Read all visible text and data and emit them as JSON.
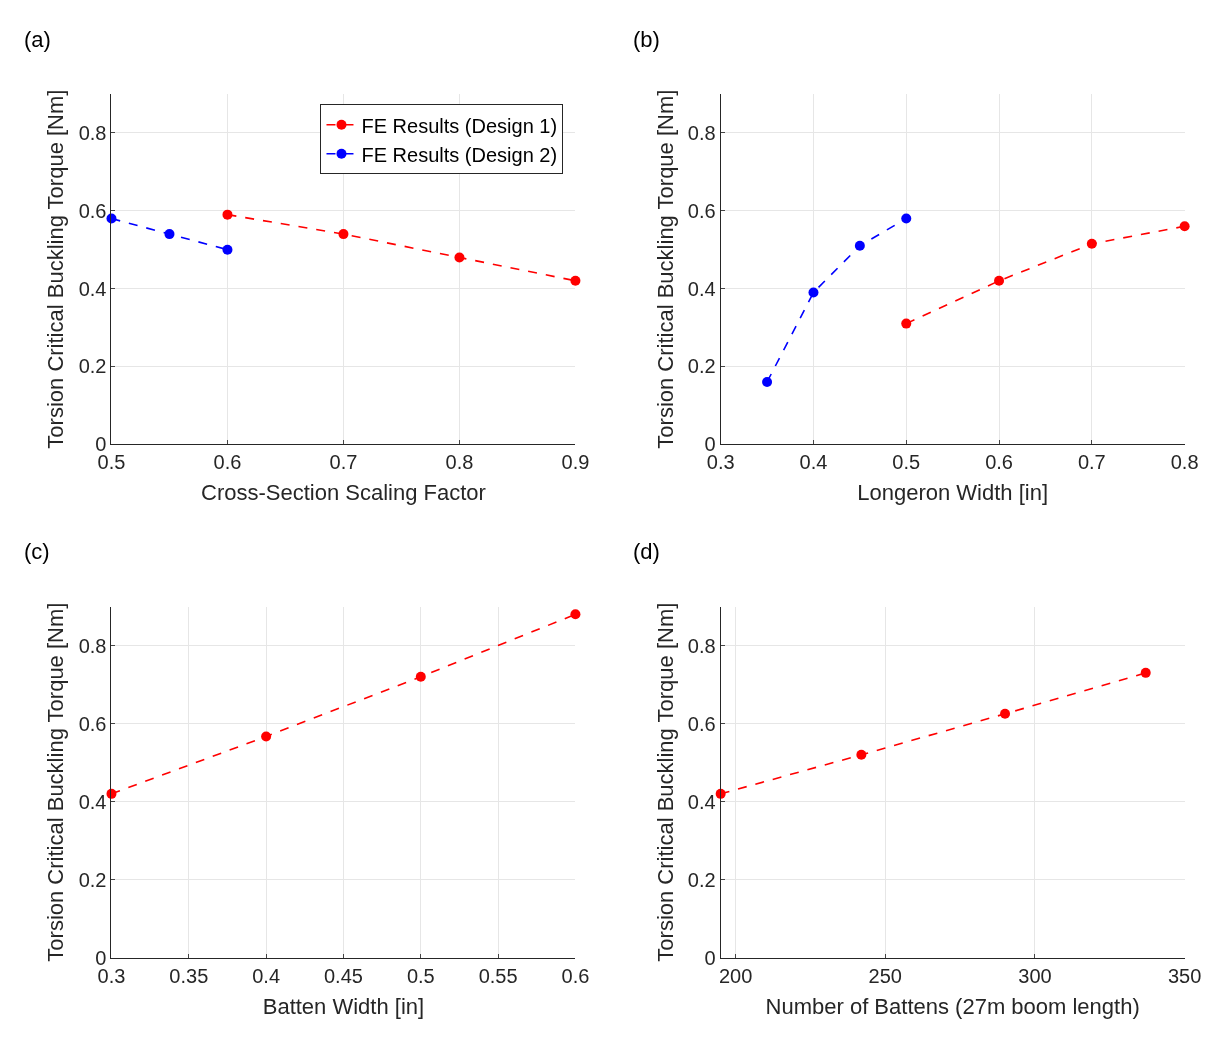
{
  "chart_data": [
    {
      "type": "line",
      "title": "(a)",
      "xlabel": "Cross-Section Scaling Factor",
      "ylabel": "Torsion Critical Buckling Torque [Nm]",
      "xlim": [
        0.5,
        0.9
      ],
      "xticks": [
        0.5,
        0.6,
        0.7,
        0.8,
        0.9
      ],
      "ylim": [
        0,
        0.9
      ],
      "yticks": [
        0,
        0.2,
        0.4,
        0.6,
        0.8
      ],
      "grid": true,
      "legend": "top right",
      "marker": "circle",
      "line_style": "dashed",
      "series": [
        {
          "name": "FE Results (Design 1)",
          "color": "#ff0000",
          "x": [
            0.6,
            0.7,
            0.8,
            0.9
          ],
          "values": [
            0.59,
            0.54,
            0.48,
            0.42
          ]
        },
        {
          "name": "FE Results (Design 2)",
          "color": "#0000ff",
          "x": [
            0.5,
            0.55,
            0.6
          ],
          "values": [
            0.58,
            0.54,
            0.5
          ]
        }
      ]
    },
    {
      "type": "line",
      "title": "(b)",
      "xlabel": "Longeron Width [in]",
      "ylabel": "Torsion Critical Buckling Torque [Nm]",
      "xlim": [
        0.3,
        0.8
      ],
      "xticks": [
        0.3,
        0.4,
        0.5,
        0.6,
        0.7,
        0.8
      ],
      "ylim": [
        0,
        0.9
      ],
      "yticks": [
        0,
        0.2,
        0.4,
        0.6,
        0.8
      ],
      "grid": true,
      "marker": "circle",
      "line_style": "dashed",
      "series": [
        {
          "color": "#0000ff",
          "x": [
            0.35,
            0.4,
            0.45,
            0.5
          ],
          "values": [
            0.16,
            0.39,
            0.51,
            0.58
          ]
        },
        {
          "color": "#ff0000",
          "x": [
            0.5,
            0.6,
            0.7,
            0.8
          ],
          "values": [
            0.31,
            0.42,
            0.515,
            0.56
          ]
        }
      ]
    },
    {
      "type": "line",
      "title": "(c)",
      "xlabel": "Batten Width [in]",
      "ylabel": "Torsion Critical Buckling Torque [Nm]",
      "xlim": [
        0.3,
        0.6
      ],
      "xticks": [
        0.3,
        0.35,
        0.4,
        0.45,
        0.5,
        0.55,
        0.6
      ],
      "ylim": [
        0,
        0.9
      ],
      "yticks": [
        0,
        0.2,
        0.4,
        0.6,
        0.8
      ],
      "grid": true,
      "marker": "circle",
      "line_style": "dashed",
      "series": [
        {
          "color": "#ff0000",
          "x": [
            0.3,
            0.4,
            0.5,
            0.6
          ],
          "values": [
            0.42,
            0.567,
            0.72,
            0.88
          ]
        }
      ]
    },
    {
      "type": "line",
      "title": "(d)",
      "xlabel": "Number of Battens (27m boom length)",
      "ylabel": "Torsion Critical Buckling Torque [Nm]",
      "xlim": [
        195,
        350
      ],
      "xticks": [
        200,
        250,
        300,
        350
      ],
      "ylim": [
        0,
        0.9
      ],
      "yticks": [
        0,
        0.2,
        0.4,
        0.6,
        0.8
      ],
      "grid": true,
      "marker": "circle",
      "line_style": "dashed",
      "series": [
        {
          "color": "#ff0000",
          "x": [
            195,
            242,
            290,
            337
          ],
          "values": [
            0.42,
            0.52,
            0.625,
            0.73
          ]
        }
      ]
    }
  ]
}
